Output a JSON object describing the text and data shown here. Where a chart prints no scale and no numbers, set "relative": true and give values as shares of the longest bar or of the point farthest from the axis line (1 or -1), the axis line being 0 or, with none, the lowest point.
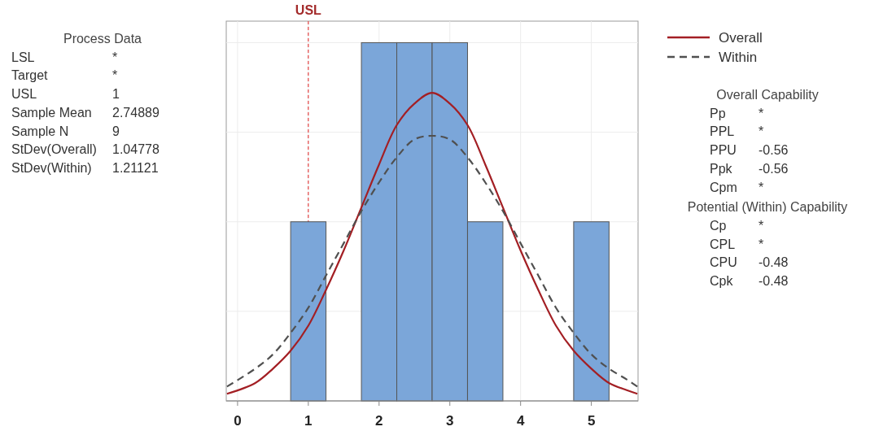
{
  "chart_data": {
    "type": "histogram",
    "relative": true,
    "bins": [
      0.75,
      1.25,
      1.75,
      2.25,
      2.75,
      3.25,
      3.75,
      4.25,
      4.75,
      5.25
    ],
    "values": [
      0.5,
      0,
      1,
      1,
      1,
      0.5,
      0,
      0,
      0.5
    ],
    "color": "#7ba6d9",
    "series": [
      {
        "type": "line",
        "name": "Overall",
        "color": "#a31f24",
        "line_style": "solid",
        "x": [
          -0.15,
          0.25,
          0.5,
          0.75,
          1,
          1.25,
          1.5,
          1.75,
          2,
          2.25,
          2.5,
          2.75,
          3,
          3.25,
          3.5,
          3.75,
          4,
          4.25,
          4.5,
          4.75,
          5,
          5.25,
          5.5,
          5.65
        ],
        "values": [
          0.02,
          0.05,
          0.09,
          0.14,
          0.21,
          0.31,
          0.42,
          0.54,
          0.66,
          0.77,
          0.83,
          0.86,
          0.83,
          0.77,
          0.66,
          0.54,
          0.42,
          0.31,
          0.21,
          0.14,
          0.09,
          0.05,
          0.03,
          0.02
        ]
      },
      {
        "type": "line",
        "name": "Within",
        "color": "#505050",
        "line_style": "dashed",
        "x": [
          -0.15,
          0.25,
          0.5,
          0.75,
          1,
          1.25,
          1.5,
          1.75,
          2,
          2.25,
          2.5,
          2.75,
          3,
          3.25,
          3.5,
          3.75,
          4,
          4.25,
          4.5,
          4.75,
          5,
          5.25,
          5.5,
          5.65
        ],
        "values": [
          0.04,
          0.09,
          0.13,
          0.19,
          0.26,
          0.35,
          0.44,
          0.53,
          0.61,
          0.68,
          0.73,
          0.74,
          0.73,
          0.68,
          0.61,
          0.53,
          0.44,
          0.35,
          0.26,
          0.19,
          0.13,
          0.09,
          0.06,
          0.04
        ]
      }
    ],
    "xlim": [
      -0.16,
      5.66
    ],
    "xticks": [
      0,
      1,
      2,
      3,
      4,
      5
    ],
    "grid": true,
    "legend": "top right",
    "ref_lines": [
      {
        "axis": "x",
        "value": 1,
        "label": "USL",
        "color": "#e02020",
        "line_style": "dashed"
      }
    ],
    "annotations": [
      "Process Data",
      "LSL\t*",
      "Target\t*",
      "USL\t1",
      "Sample Mean\t2.74889",
      "Sample N\t9",
      "StDev(Overall)\t1.04778",
      "StDev(Within)\t1.21121",
      "Overall Capability",
      "Pp\t*",
      "PPL\t*",
      "PPU\t-0.56",
      "Ppk\t-0.56",
      "Cpm\t*",
      "Potential (Within) Capability",
      "Cp\t*",
      "CPL\t*",
      "CPU\t-0.48",
      "Cpk\t-0.48"
    ]
  }
}
